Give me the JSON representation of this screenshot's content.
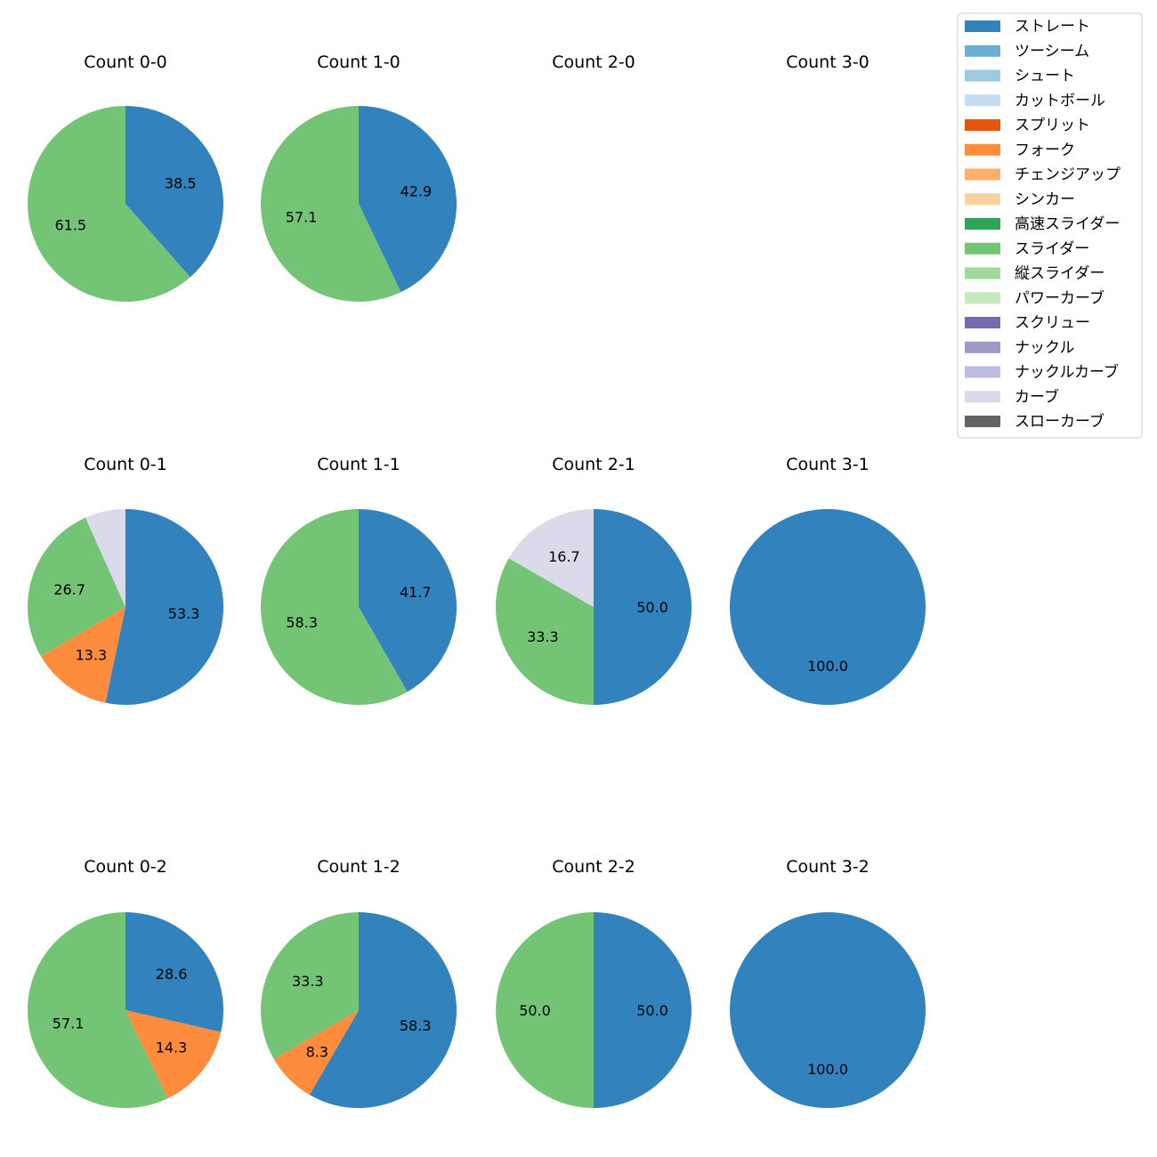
{
  "chart_data": {
    "type": "pie",
    "layout": "grid of pie charts, 3 rows x 4 columns",
    "legend": {
      "position": "top-right",
      "entries": [
        {
          "label": "ストレート",
          "color": "#3182bd"
        },
        {
          "label": "ツーシーム",
          "color": "#6baed6"
        },
        {
          "label": "シュート",
          "color": "#9ecae1"
        },
        {
          "label": "カットボール",
          "color": "#c6dbef"
        },
        {
          "label": "スプリット",
          "color": "#e6550d"
        },
        {
          "label": "フォーク",
          "color": "#fd8d3c"
        },
        {
          "label": "チェンジアップ",
          "color": "#fdae6b"
        },
        {
          "label": "シンカー",
          "color": "#fdd0a2"
        },
        {
          "label": "高速スライダー",
          "color": "#31a354"
        },
        {
          "label": "スライダー",
          "color": "#74c476"
        },
        {
          "label": "縦スライダー",
          "color": "#a1d99b"
        },
        {
          "label": "パワーカーブ",
          "color": "#c7e9c0"
        },
        {
          "label": "スクリュー",
          "color": "#756bb1"
        },
        {
          "label": "ナックル",
          "color": "#9e9ac8"
        },
        {
          "label": "ナックルカーブ",
          "color": "#bcbddc"
        },
        {
          "label": "カーブ",
          "color": "#dadaeb"
        },
        {
          "label": "スローカーブ",
          "color": "#636363"
        }
      ]
    },
    "pies": [
      {
        "title": "Count 0-0",
        "slices": [
          {
            "label": "ストレート",
            "value": 38.5,
            "text": "38.5"
          },
          {
            "label": "スライダー",
            "value": 61.5,
            "text": "61.5"
          }
        ]
      },
      {
        "title": "Count 1-0",
        "slices": [
          {
            "label": "ストレート",
            "value": 42.9,
            "text": "42.9"
          },
          {
            "label": "スライダー",
            "value": 57.1,
            "text": "57.1"
          }
        ]
      },
      {
        "title": "Count 2-0",
        "slices": []
      },
      {
        "title": "Count 3-0",
        "slices": []
      },
      {
        "title": "Count 0-1",
        "slices": [
          {
            "label": "ストレート",
            "value": 53.3,
            "text": "53.3"
          },
          {
            "label": "フォーク",
            "value": 13.3,
            "text": "13.3"
          },
          {
            "label": "スライダー",
            "value": 26.7,
            "text": "26.7"
          },
          {
            "label": "カーブ",
            "value": 6.7,
            "text": ""
          }
        ]
      },
      {
        "title": "Count 1-1",
        "slices": [
          {
            "label": "ストレート",
            "value": 41.7,
            "text": "41.7"
          },
          {
            "label": "スライダー",
            "value": 58.3,
            "text": "58.3"
          }
        ]
      },
      {
        "title": "Count 2-1",
        "slices": [
          {
            "label": "ストレート",
            "value": 50.0,
            "text": "50.0"
          },
          {
            "label": "スライダー",
            "value": 33.3,
            "text": "33.3"
          },
          {
            "label": "カーブ",
            "value": 16.7,
            "text": "16.7"
          }
        ]
      },
      {
        "title": "Count 3-1",
        "slices": [
          {
            "label": "ストレート",
            "value": 100.0,
            "text": "100.0"
          }
        ]
      },
      {
        "title": "Count 0-2",
        "slices": [
          {
            "label": "ストレート",
            "value": 28.6,
            "text": "28.6"
          },
          {
            "label": "フォーク",
            "value": 14.3,
            "text": "14.3"
          },
          {
            "label": "スライダー",
            "value": 57.1,
            "text": "57.1"
          }
        ]
      },
      {
        "title": "Count 1-2",
        "slices": [
          {
            "label": "ストレート",
            "value": 58.3,
            "text": "58.3"
          },
          {
            "label": "フォーク",
            "value": 8.3,
            "text": "8.3"
          },
          {
            "label": "スライダー",
            "value": 33.3,
            "text": "33.3"
          }
        ]
      },
      {
        "title": "Count 2-2",
        "slices": [
          {
            "label": "ストレート",
            "value": 50.0,
            "text": "50.0"
          },
          {
            "label": "スライダー",
            "value": 50.0,
            "text": "50.0"
          }
        ]
      },
      {
        "title": "Count 3-2",
        "slices": [
          {
            "label": "ストレート",
            "value": 100.0,
            "text": "100.0"
          }
        ]
      }
    ]
  }
}
